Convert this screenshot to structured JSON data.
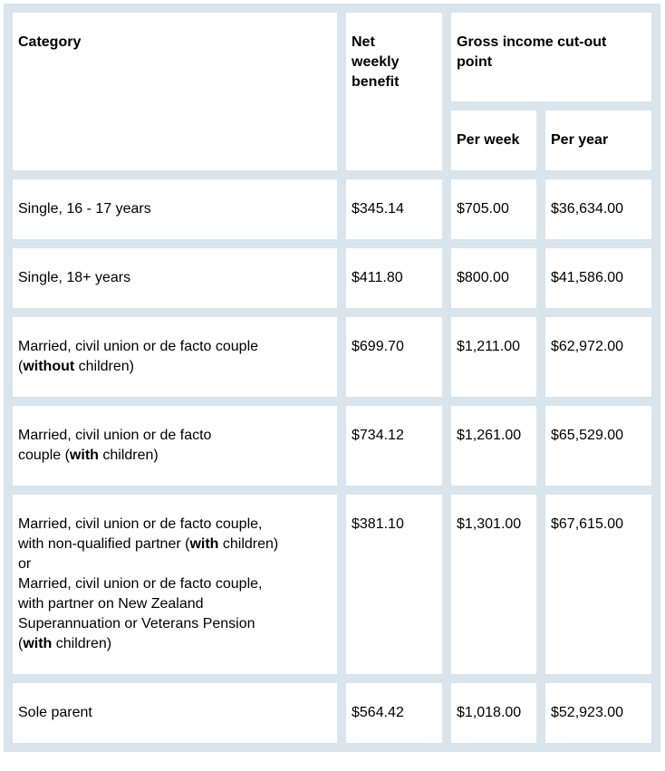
{
  "table": {
    "header": {
      "category": "Category",
      "net_weekly_benefit": "Net\nweekly\nbenefit",
      "gross_income_group": "Gross income cut-out\npoint",
      "per_week": "Per week",
      "per_year": "Per year"
    },
    "rows": [
      {
        "category": "Single, 16 - 17 years",
        "net_weekly_benefit": "$345.14",
        "per_week": "$705.00",
        "per_year": "$36,634.00"
      },
      {
        "category": "Single, 18+ years",
        "net_weekly_benefit": "$411.80",
        "per_week": "$800.00",
        "per_year": "$41,586.00"
      },
      {
        "category": "Married, civil union or de facto couple\n(**without** children)",
        "net_weekly_benefit": "$699.70",
        "per_week": "$1,211.00",
        "per_year": "$62,972.00"
      },
      {
        "category": "Married, civil union or de facto\ncouple (**with** children)",
        "net_weekly_benefit": "$734.12",
        "per_week": "$1,261.00",
        "per_year": "$65,529.00"
      },
      {
        "category": "Married, civil union or de facto couple,\nwith non-qualified partner (**with** children)\nor\nMarried, civil union or de facto couple,\nwith partner on New Zealand\nSuperannuation or Veterans Pension\n(**with** children)",
        "net_weekly_benefit": "$381.10",
        "per_week": "$1,301.00",
        "per_year": "$67,615.00"
      },
      {
        "category": "Sole parent",
        "net_weekly_benefit": "$564.42",
        "per_week": "$1,018.00",
        "per_year": "$52,923.00"
      }
    ],
    "colors": {
      "table_chrome": "#d9e4ec",
      "cell_background": "#ffffff",
      "text": "#000000"
    }
  }
}
